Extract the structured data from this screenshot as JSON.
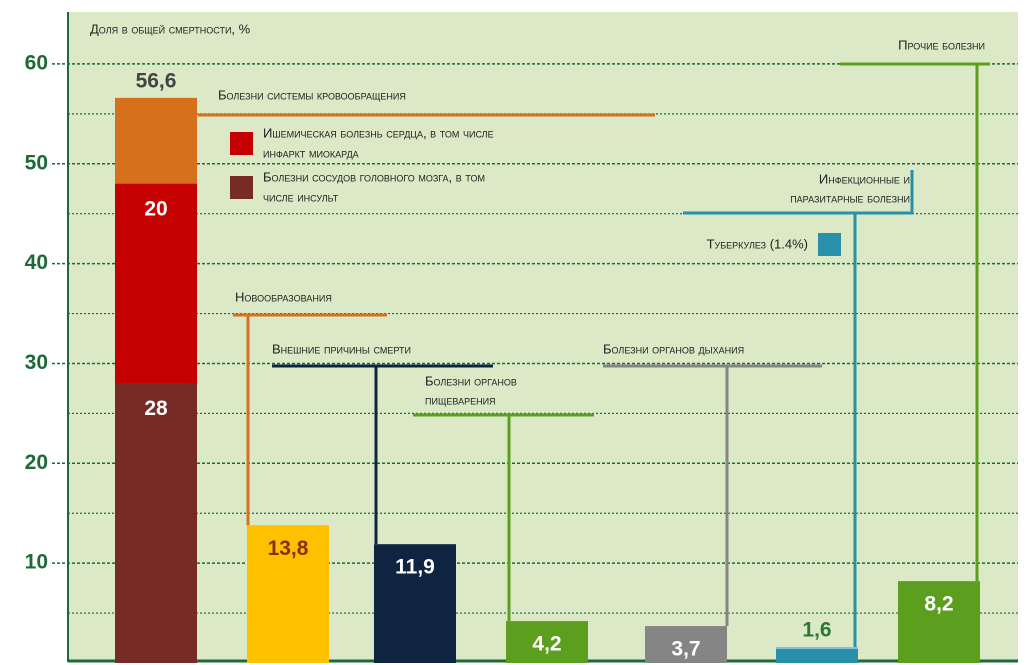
{
  "chart_data": {
    "type": "annotated_bar",
    "title": "Доля в общей смертности, %",
    "ylim": [
      0,
      65
    ],
    "yticks": [
      10,
      20,
      30,
      40,
      50,
      60
    ],
    "minor_yticks": [
      5,
      15,
      25,
      35,
      45,
      55
    ],
    "grid": true,
    "bars": [
      {
        "name": [
          "Болезни системы кровообращения"
        ],
        "value": 56.6,
        "value_label": "56,6",
        "color": "#d6701d",
        "segments": [
          {
            "name": [
              "Болезни сосудов головного мозга, в том",
              "числе инсульт"
            ],
            "value": 28,
            "color": "#772b27"
          },
          {
            "name": [
              "Ишемическая болезнь сердца, в том числе",
              "инфаркт миокарда"
            ],
            "value": 20,
            "color": "#c40000"
          }
        ]
      },
      {
        "name": [
          "Новообразования"
        ],
        "value": 13.8,
        "value_label": "13,8",
        "color": "#ffc000"
      },
      {
        "name": [
          "Внешние причины смерти"
        ],
        "value": 11.9,
        "value_label": "11,9",
        "color": "#0f2440"
      },
      {
        "name": [
          "Болезни органов",
          "пищеварения"
        ],
        "value": 4.2,
        "value_label": "4,2",
        "color": "#5c9e1e"
      },
      {
        "name": [
          "Болезни органов дыхания"
        ],
        "value": 3.7,
        "value_label": "3,7",
        "color": "#858585"
      },
      {
        "name": [
          "Инфекционные и",
          "паразитарные болезни"
        ],
        "value": 1.6,
        "value_label": "1,6",
        "color": "#7cc3da",
        "segments": [
          {
            "name": [
              "Туберкулез (1.4%)"
            ],
            "value": 1.4,
            "color": "#2a90aa"
          }
        ]
      },
      {
        "name": [
          "Прочие болезни"
        ],
        "value": 8.2,
        "value_label": "8,2",
        "color": "#5c9e1e"
      }
    ]
  }
}
